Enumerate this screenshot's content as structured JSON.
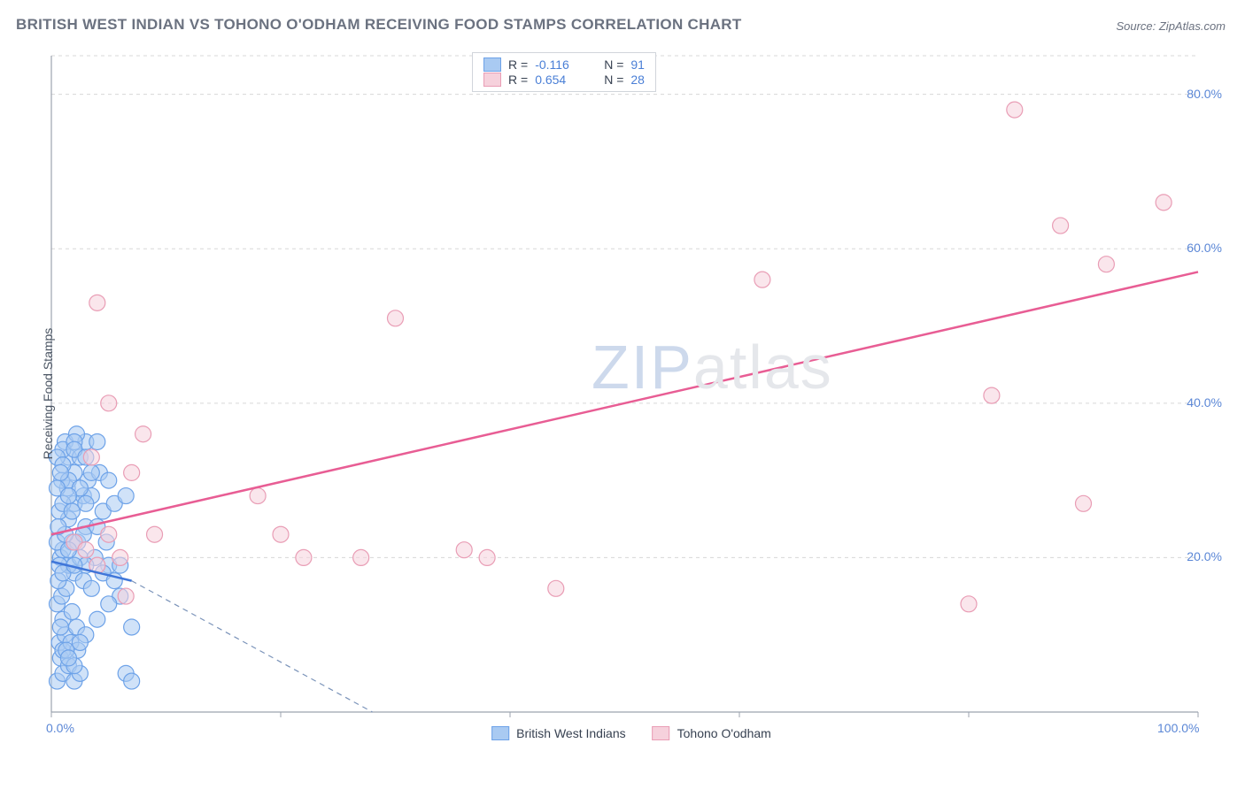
{
  "title": "BRITISH WEST INDIAN VS TOHONO O'ODHAM RECEIVING FOOD STAMPS CORRELATION CHART",
  "source": "Source: ZipAtlas.com",
  "ylabel": "Receiving Food Stamps",
  "watermark_zip": "ZIP",
  "watermark_atlas": "atlas",
  "chart": {
    "type": "scatter-correlation",
    "background_color": "#ffffff",
    "grid_color": "#d8d8d8",
    "grid_dash": "4,4",
    "axis_color": "#9ca3af",
    "tick_label_color": "#5b87d6",
    "xlim": [
      0,
      100
    ],
    "ylim": [
      0,
      85
    ],
    "x_ticks": [
      0,
      20,
      40,
      60,
      80,
      100
    ],
    "x_tick_labels": [
      "0.0%",
      "",
      "",
      "",
      "",
      "100.0%"
    ],
    "y_ticks": [
      20,
      40,
      60,
      80
    ],
    "y_tick_labels": [
      "20.0%",
      "40.0%",
      "60.0%",
      "80.0%"
    ],
    "series": [
      {
        "name": "British West Indians",
        "marker_fill": "#a9caf2",
        "marker_stroke": "#6da2e8",
        "marker_fill_opacity": 0.55,
        "marker_radius": 9,
        "line_color": "#3f76d9",
        "line_dash_color": "#7a93b9",
        "r_value": "-0.116",
        "n_value": "91",
        "trend": {
          "x1": 0,
          "y1": 19.5,
          "x2": 7,
          "y2": 17.0
        },
        "trend_extrapolate": {
          "x1": 7,
          "y1": 17.0,
          "x2": 28,
          "y2": 0
        },
        "points": [
          [
            0.5,
            4
          ],
          [
            1,
            5
          ],
          [
            0.8,
            7
          ],
          [
            1.5,
            6
          ],
          [
            2,
            4
          ],
          [
            0.7,
            9
          ],
          [
            1.2,
            10
          ],
          [
            2.5,
            5
          ],
          [
            1,
            12
          ],
          [
            0.5,
            14
          ],
          [
            1.8,
            13
          ],
          [
            0.9,
            15
          ],
          [
            2.2,
            11
          ],
          [
            1.3,
            16
          ],
          [
            0.6,
            17
          ],
          [
            2,
            18
          ],
          [
            1.5,
            19
          ],
          [
            0.8,
            20
          ],
          [
            2.5,
            20
          ],
          [
            1,
            21
          ],
          [
            1.8,
            22
          ],
          [
            0.5,
            22
          ],
          [
            2.3,
            22
          ],
          [
            1.2,
            23
          ],
          [
            3,
            24
          ],
          [
            1.5,
            25
          ],
          [
            0.7,
            26
          ],
          [
            2,
            27
          ],
          [
            1,
            27
          ],
          [
            2.8,
            28
          ],
          [
            1.4,
            29
          ],
          [
            3.2,
            30
          ],
          [
            0.9,
            30
          ],
          [
            2,
            31
          ],
          [
            1.5,
            33
          ],
          [
            2.5,
            33
          ],
          [
            3,
            35
          ],
          [
            1.2,
            35
          ],
          [
            2.2,
            36
          ],
          [
            0.8,
            11
          ],
          [
            1,
            8
          ],
          [
            1.7,
            9
          ],
          [
            2.3,
            8
          ],
          [
            3.5,
            28
          ],
          [
            4,
            24
          ],
          [
            4.5,
            26
          ],
          [
            5,
            19
          ],
          [
            5.5,
            27
          ],
          [
            4.2,
            31
          ],
          [
            3.8,
            20
          ],
          [
            4.8,
            22
          ],
          [
            6,
            15
          ],
          [
            6.5,
            5
          ],
          [
            7,
            4
          ],
          [
            5,
            30
          ],
          [
            4,
            35
          ],
          [
            3,
            19
          ],
          [
            2.8,
            17
          ],
          [
            3.5,
            16
          ],
          [
            4.5,
            18
          ],
          [
            5.5,
            17
          ],
          [
            6,
            19
          ],
          [
            6.5,
            28
          ],
          [
            7,
            11
          ],
          [
            1.5,
            30
          ],
          [
            2.5,
            29
          ],
          [
            3.5,
            31
          ],
          [
            1,
            34
          ],
          [
            2,
            35
          ],
          [
            0.5,
            29
          ],
          [
            1.8,
            26
          ],
          [
            3,
            27
          ],
          [
            0.7,
            19
          ],
          [
            1.5,
            21
          ],
          [
            2.8,
            23
          ],
          [
            0.6,
            24
          ],
          [
            1.3,
            8
          ],
          [
            2,
            6
          ],
          [
            3,
            10
          ],
          [
            4,
            12
          ],
          [
            5,
            14
          ],
          [
            0.5,
            33
          ],
          [
            1,
            32
          ],
          [
            2,
            34
          ],
          [
            3,
            33
          ],
          [
            1.5,
            7
          ],
          [
            2.5,
            9
          ],
          [
            1,
            18
          ],
          [
            2,
            19
          ],
          [
            0.8,
            31
          ],
          [
            1.5,
            28
          ]
        ]
      },
      {
        "name": "Tohono O'odham",
        "marker_fill": "#f6d1dc",
        "marker_stroke": "#e99db5",
        "marker_fill_opacity": 0.55,
        "marker_radius": 9,
        "line_color": "#e85d94",
        "r_value": "0.654",
        "n_value": "28",
        "trend": {
          "x1": 0,
          "y1": 23,
          "x2": 100,
          "y2": 57
        },
        "points": [
          [
            2,
            22
          ],
          [
            3,
            21
          ],
          [
            4,
            19
          ],
          [
            5,
            23
          ],
          [
            6,
            20
          ],
          [
            6.5,
            15
          ],
          [
            8,
            36
          ],
          [
            7,
            31
          ],
          [
            5,
            40
          ],
          [
            9,
            23
          ],
          [
            18,
            28
          ],
          [
            20,
            23
          ],
          [
            22,
            20
          ],
          [
            27,
            20
          ],
          [
            30,
            51
          ],
          [
            36,
            21
          ],
          [
            38,
            20
          ],
          [
            44,
            16
          ],
          [
            62,
            56
          ],
          [
            80,
            14
          ],
          [
            82,
            41
          ],
          [
            84,
            78
          ],
          [
            88,
            63
          ],
          [
            90,
            27
          ],
          [
            92,
            58
          ],
          [
            97,
            66
          ],
          [
            4,
            53
          ],
          [
            3.5,
            33
          ]
        ]
      }
    ]
  },
  "legend_top": {
    "rows": [
      {
        "swatch_fill": "#a9caf2",
        "swatch_stroke": "#6da2e8",
        "r_label": "R =",
        "r_value": "-0.116",
        "n_label": "N =",
        "n_value": "91"
      },
      {
        "swatch_fill": "#f6d1dc",
        "swatch_stroke": "#e99db5",
        "r_label": "R =",
        "r_value": "0.654",
        "n_label": "N =",
        "n_value": "28"
      }
    ]
  },
  "legend_bottom": [
    {
      "swatch_fill": "#a9caf2",
      "swatch_stroke": "#6da2e8",
      "label": "British West Indians"
    },
    {
      "swatch_fill": "#f6d1dc",
      "swatch_stroke": "#e99db5",
      "label": "Tohono O'odham"
    }
  ]
}
